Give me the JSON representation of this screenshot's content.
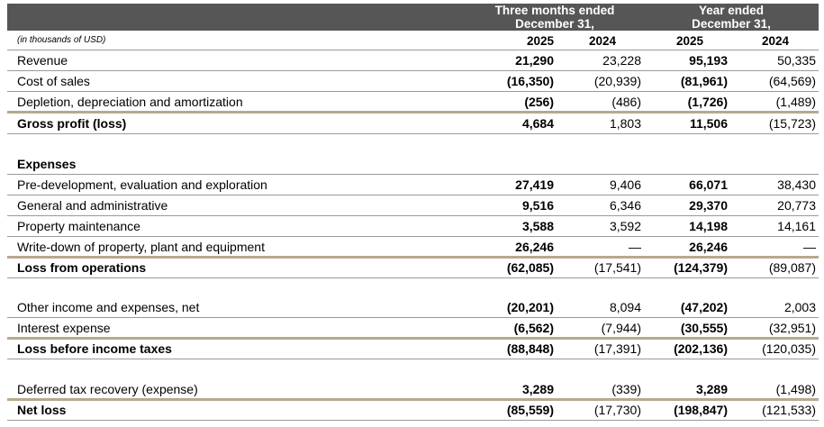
{
  "header": {
    "group1": [
      "Three months ended",
      "December 31,"
    ],
    "group2": [
      "Year ended",
      "December 31,"
    ],
    "unit_note": "(in thousands of USD)",
    "years": [
      "2025",
      "2024",
      "2025",
      "2024"
    ]
  },
  "rows": [
    {
      "label": "Revenue",
      "v": [
        "21,290",
        "23,228",
        "95,193",
        "50,335"
      ]
    },
    {
      "label": "Cost of sales",
      "v": [
        "(16,350)",
        "(20,939)",
        "(81,961)",
        "(64,569)"
      ]
    },
    {
      "label": "Depletion, depreciation and amortization",
      "v": [
        "(256)",
        "(486)",
        "(1,726)",
        "(1,489)"
      ]
    },
    {
      "label": "Gross profit (loss)",
      "v": [
        "4,684",
        "1,803",
        "11,506",
        "(15,723)"
      ]
    },
    {
      "label": "Expenses",
      "v": [
        "",
        "",
        "",
        ""
      ]
    },
    {
      "label": "Pre-development, evaluation and exploration",
      "v": [
        "27,419",
        "9,406",
        "66,071",
        "38,430"
      ]
    },
    {
      "label": "General and administrative",
      "v": [
        "9,516",
        "6,346",
        "29,370",
        "20,773"
      ]
    },
    {
      "label": "Property maintenance",
      "v": [
        "3,588",
        "3,592",
        "14,198",
        "14,161"
      ]
    },
    {
      "label": "Write-down of property, plant and equipment",
      "v": [
        "26,246",
        "—",
        "26,246",
        "—"
      ]
    },
    {
      "label": "Loss from operations",
      "v": [
        "(62,085)",
        "(17,541)",
        "(124,379)",
        "(89,087)"
      ]
    },
    {
      "label": "Other income and expenses, net",
      "v": [
        "(20,201)",
        "8,094",
        "(47,202)",
        "2,003"
      ]
    },
    {
      "label": "Interest expense",
      "v": [
        "(6,562)",
        "(7,944)",
        "(30,555)",
        "(32,951)"
      ]
    },
    {
      "label": "Loss before income taxes",
      "v": [
        "(88,848)",
        "(17,391)",
        "(202,136)",
        "(120,035)"
      ]
    },
    {
      "label": "Deferred tax recovery (expense)",
      "v": [
        "3,289",
        "(339)",
        "3,289",
        "(1,498)"
      ]
    },
    {
      "label": "Net loss",
      "v": [
        "(85,559)",
        "(17,730)",
        "(198,847)",
        "(121,533)"
      ]
    }
  ]
}
